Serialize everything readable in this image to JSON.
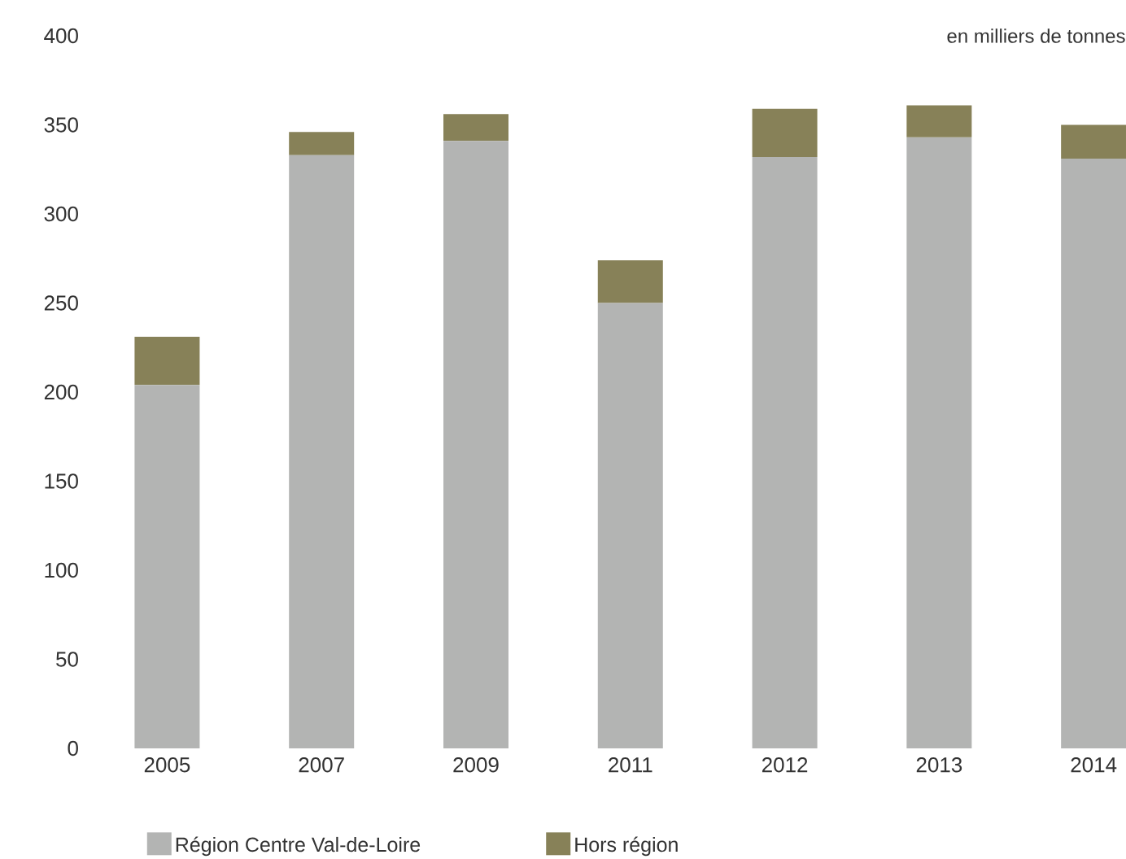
{
  "chart_data": {
    "type": "bar",
    "stacked": true,
    "categories": [
      "2005",
      "2007",
      "2009",
      "2011",
      "2012",
      "2013",
      "2014"
    ],
    "series": [
      {
        "name": "Région Centre Val-de-Loire",
        "color": "#b3b4b3",
        "values": [
          204,
          333,
          341,
          250,
          332,
          343,
          331
        ]
      },
      {
        "name": "Hors région",
        "color": "#878158",
        "values": [
          27,
          13,
          15,
          24,
          27,
          18,
          19
        ]
      }
    ],
    "ylim": [
      0,
      400
    ],
    "yticks": [
      0,
      50,
      100,
      150,
      200,
      250,
      300,
      350,
      400
    ],
    "legend": "bottom",
    "annotations": [
      "en milliers de tonnes"
    ]
  }
}
